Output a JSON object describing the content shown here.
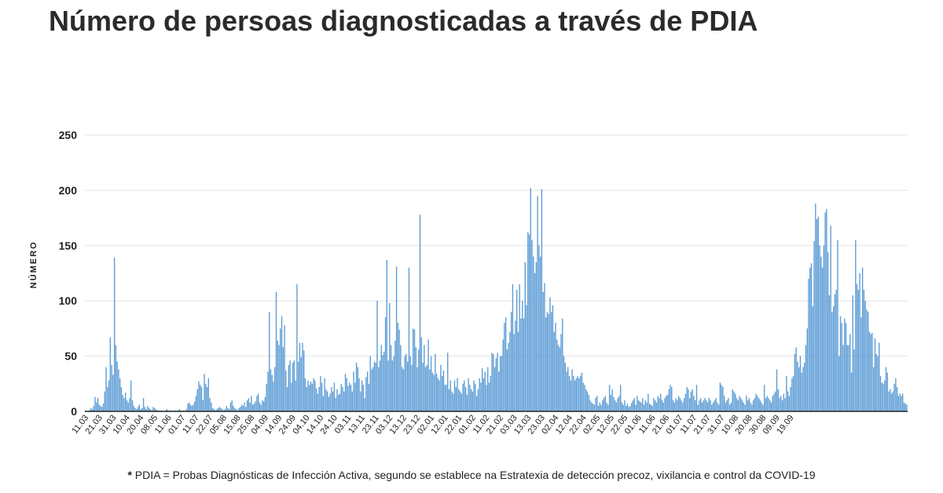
{
  "title": "Número de persoas diagnosticadas a través de PDIA",
  "footnote": {
    "mark": "*",
    "text": "PDIA = Probas Diagnósticas de Infección Activa, segundo se establece na Estratexia de detección precoz, vixilancia e control da COVID-19"
  },
  "colors": {
    "bar": "#5b9bd5",
    "bar_stroke": "#3f7fbf",
    "grid": "#e3e3e3",
    "axis": "#222222",
    "text": "#222222"
  },
  "chart_data": {
    "type": "bar",
    "title": "Número de persoas diagnosticadas a través de PDIA",
    "xlabel": "",
    "ylabel": "NÚMERO",
    "ylim": [
      0,
      250
    ],
    "yticks": [
      0,
      50,
      100,
      150,
      200,
      250
    ],
    "grid": true,
    "x_tick_labels": [
      "11.03",
      "21.03",
      "31.03",
      "10.04",
      "20.04",
      "08.05",
      "11.06",
      "01.07",
      "11.07",
      "22.07",
      "05.08",
      "15.08",
      "25.08",
      "04.09",
      "14.09",
      "24.09",
      "04.10",
      "14.10",
      "24.10",
      "03.11",
      "13.11",
      "23.11",
      "03.12",
      "13.12",
      "23.12",
      "02.01",
      "12.01",
      "22.01",
      "01.02",
      "11.02",
      "21.02",
      "03.03",
      "13.03",
      "23.03",
      "02.04",
      "12.04",
      "22.04",
      "02.05",
      "12.05",
      "22.05",
      "01.06",
      "11.06",
      "21.06",
      "01.07",
      "11.07",
      "21.07",
      "31.07",
      "10.08",
      "20.08",
      "30.08",
      "09.09",
      "19.09"
    ],
    "tick_every": 10,
    "values": [
      1,
      0,
      0,
      1,
      3,
      2,
      5,
      13,
      8,
      12,
      6,
      5,
      4,
      7,
      18,
      40,
      22,
      28,
      67,
      42,
      33,
      139,
      60,
      45,
      38,
      30,
      22,
      15,
      12,
      17,
      10,
      8,
      12,
      28,
      10,
      5,
      3,
      2,
      4,
      6,
      2,
      3,
      12,
      4,
      2,
      5,
      3,
      2,
      1,
      4,
      3,
      2,
      1,
      1,
      0,
      1,
      0,
      0,
      1,
      2,
      1,
      0,
      1,
      0,
      0,
      1,
      0,
      1,
      2,
      1,
      0,
      1,
      0,
      2,
      7,
      8,
      6,
      5,
      6,
      9,
      14,
      20,
      27,
      24,
      22,
      10,
      34,
      25,
      22,
      30,
      12,
      8,
      3,
      2,
      1,
      2,
      3,
      4,
      3,
      2,
      1,
      2,
      5,
      3,
      2,
      8,
      10,
      5,
      3,
      2,
      1,
      3,
      4,
      6,
      5,
      8,
      4,
      10,
      12,
      8,
      14,
      6,
      7,
      9,
      14,
      16,
      8,
      6,
      10,
      9,
      13,
      25,
      36,
      90,
      38,
      33,
      27,
      40,
      108,
      64,
      60,
      75,
      86,
      58,
      78,
      37,
      22,
      42,
      46,
      26,
      44,
      46,
      28,
      115,
      45,
      62,
      49,
      62,
      55,
      30,
      22,
      28,
      24,
      27,
      25,
      30,
      28,
      21,
      16,
      22,
      32,
      26,
      14,
      30,
      20,
      18,
      13,
      16,
      22,
      18,
      26,
      12,
      20,
      15,
      16,
      25,
      22,
      18,
      34,
      30,
      23,
      26,
      24,
      18,
      36,
      26,
      44,
      40,
      30,
      18,
      28,
      24,
      12,
      31,
      36,
      25,
      50,
      38,
      40,
      45,
      44,
      100,
      40,
      46,
      60,
      51,
      54,
      85,
      137,
      46,
      98,
      60,
      46,
      50,
      64,
      131,
      80,
      74,
      60,
      40,
      38,
      50,
      52,
      45,
      130,
      50,
      42,
      75,
      74,
      58,
      40,
      56,
      178,
      67,
      44,
      60,
      40,
      42,
      65,
      38,
      50,
      35,
      33,
      52,
      34,
      30,
      28,
      42,
      32,
      37,
      24,
      24,
      53,
      20,
      28,
      18,
      16,
      28,
      22,
      30,
      20,
      18,
      16,
      25,
      28,
      22,
      15,
      30,
      24,
      20,
      18,
      28,
      25,
      14,
      20,
      30,
      26,
      39,
      30,
      36,
      24,
      40,
      26,
      32,
      53,
      52,
      40,
      48,
      53,
      36,
      50,
      50,
      65,
      80,
      85,
      56,
      62,
      72,
      90,
      115,
      70,
      82,
      110,
      72,
      115,
      84,
      100,
      84,
      135,
      96,
      162,
      160,
      202,
      155,
      140,
      125,
      135,
      195,
      150,
      140,
      201,
      108,
      116,
      85,
      90,
      88,
      103,
      90,
      96,
      72,
      80,
      65,
      60,
      58,
      70,
      84,
      50,
      44,
      36,
      40,
      32,
      28,
      38,
      32,
      28,
      30,
      32,
      30,
      32,
      35,
      26,
      24,
      20,
      18,
      15,
      10,
      8,
      7,
      6,
      12,
      14,
      5,
      8,
      6,
      10,
      12,
      14,
      8,
      6,
      24,
      15,
      20,
      13,
      10,
      8,
      12,
      14,
      24,
      8,
      6,
      10,
      5,
      7,
      4,
      5,
      8,
      10,
      12,
      6,
      14,
      10,
      9,
      8,
      12,
      6,
      10,
      8,
      16,
      7,
      6,
      5,
      12,
      10,
      8,
      14,
      12,
      16,
      10,
      8,
      12,
      14,
      15,
      20,
      24,
      22,
      10,
      8,
      12,
      10,
      14,
      12,
      10,
      8,
      12,
      16,
      22,
      20,
      12,
      18,
      20,
      14,
      10,
      24,
      6,
      10,
      12,
      8,
      10,
      12,
      10,
      8,
      12,
      10,
      6,
      8,
      10,
      12,
      8,
      6,
      26,
      24,
      22,
      14,
      8,
      10,
      12,
      6,
      8,
      20,
      18,
      16,
      12,
      10,
      14,
      12,
      10,
      8,
      6,
      14,
      10,
      12,
      8,
      6,
      10,
      12,
      16,
      14,
      12,
      10,
      8,
      6,
      24,
      12,
      14,
      12,
      10,
      8,
      14,
      16,
      18,
      38,
      20,
      12,
      14,
      10,
      16,
      12,
      32,
      18,
      14,
      22,
      30,
      32,
      52,
      58,
      45,
      40,
      50,
      35,
      40,
      44,
      60,
      75,
      120,
      130,
      134,
      95,
      154,
      188,
      174,
      176,
      150,
      140,
      130,
      150,
      180,
      183,
      144,
      105,
      168,
      90,
      95,
      106,
      110,
      155,
      50,
      86,
      80,
      60,
      84,
      80,
      60,
      60,
      70,
      35,
      105,
      56,
      155,
      115,
      110,
      125,
      85,
      130,
      110,
      100,
      92,
      90,
      72,
      70,
      71,
      40,
      66,
      52,
      50,
      62,
      32,
      26,
      25,
      28,
      40,
      35,
      18,
      20,
      16,
      18,
      25,
      30,
      22,
      14,
      16,
      14,
      16,
      8,
      7,
      6
    ]
  }
}
